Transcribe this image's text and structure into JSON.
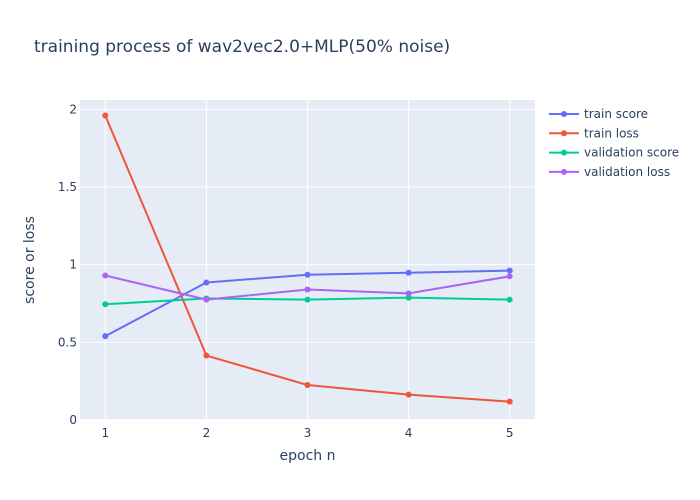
{
  "chart_data": {
    "type": "line",
    "title": "training process of wav2vec2.0+MLP(50% noise)",
    "xlabel": "epoch n",
    "ylabel": "score or loss",
    "x": [
      1,
      2,
      3,
      4,
      5
    ],
    "xlim": [
      0.75,
      5.25
    ],
    "ylim": [
      0,
      2.06
    ],
    "xticks": [
      "1",
      "2",
      "3",
      "4",
      "5"
    ],
    "yticks": [
      {
        "value": 0,
        "label": "0"
      },
      {
        "value": 0.5,
        "label": "0.5"
      },
      {
        "value": 1,
        "label": "1"
      },
      {
        "value": 1.5,
        "label": "1.5"
      },
      {
        "value": 2,
        "label": "2"
      }
    ],
    "grid": true,
    "legend_position": "top-right",
    "series": [
      {
        "name": "train score",
        "color": "#636efa",
        "values": [
          0.54,
          0.885,
          0.935,
          0.948,
          0.962
        ]
      },
      {
        "name": "train loss",
        "color": "#ef553b",
        "values": [
          1.96,
          0.415,
          0.225,
          0.163,
          0.118
        ]
      },
      {
        "name": "validation score",
        "color": "#00cc96",
        "values": [
          0.745,
          0.782,
          0.775,
          0.788,
          0.775
        ]
      },
      {
        "name": "validation loss",
        "color": "#ab63fa",
        "values": [
          0.93,
          0.775,
          0.84,
          0.815,
          0.925
        ]
      }
    ]
  }
}
